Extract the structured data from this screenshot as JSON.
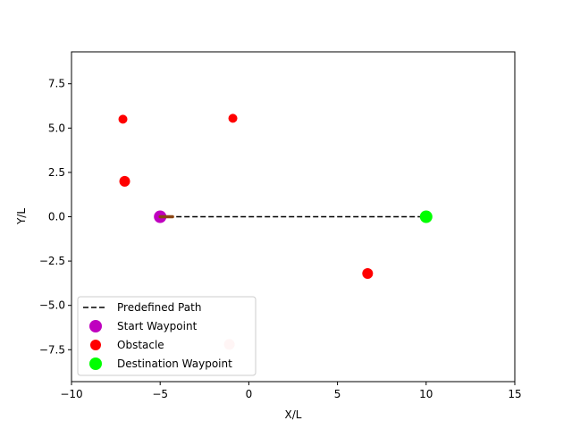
{
  "chart_data": {
    "type": "scatter",
    "title": "",
    "xlabel": "X/L",
    "ylabel": "Y/L",
    "xlim": [
      -10,
      15
    ],
    "ylim": [
      -9.3,
      9.3
    ],
    "xticks": [
      -10,
      -5,
      0,
      5,
      10,
      15
    ],
    "yticks": [
      -7.5,
      -5.0,
      -2.5,
      0.0,
      2.5,
      5.0,
      7.5
    ],
    "xtick_labels": [
      "−10",
      "−5",
      "0",
      "5",
      "10",
      "15"
    ],
    "ytick_labels": [
      "−7.5",
      "−5.0",
      "−2.5",
      "0.0",
      "2.5",
      "5.0",
      "7.5"
    ],
    "grid": false,
    "legend_position": "lower-left",
    "predefined_path": {
      "name": "Predefined Path",
      "style": "dashed",
      "color": "#000000",
      "x": [
        -5,
        10
      ],
      "y": [
        0,
        0
      ]
    },
    "start_waypoint": {
      "name": "Start Waypoint",
      "x": -5,
      "y": 0,
      "color": "#bf00bf"
    },
    "destination_waypoint": {
      "name": "Destination Waypoint",
      "x": 10,
      "y": 0,
      "color": "#00ff00"
    },
    "vessel_heading": {
      "x": [
        -5,
        -4.3
      ],
      "y": [
        0,
        0
      ],
      "color": "#8b4513"
    },
    "obstacles": {
      "name": "Obstacle",
      "color": "#ff0000",
      "points": [
        {
          "x": -7.1,
          "y": 5.5,
          "size": "small",
          "opacity": 1
        },
        {
          "x": -0.9,
          "y": 5.55,
          "size": "small",
          "opacity": 1
        },
        {
          "x": -7.0,
          "y": 2.0,
          "size": "medium",
          "opacity": 1
        },
        {
          "x": 6.7,
          "y": -3.2,
          "size": "medium",
          "opacity": 1
        },
        {
          "x": -1.1,
          "y": -7.2,
          "size": "medium",
          "opacity": 0.2
        }
      ]
    },
    "legend": [
      "Predefined Path",
      "Start Waypoint",
      "Obstacle",
      "Destination Waypoint"
    ]
  }
}
